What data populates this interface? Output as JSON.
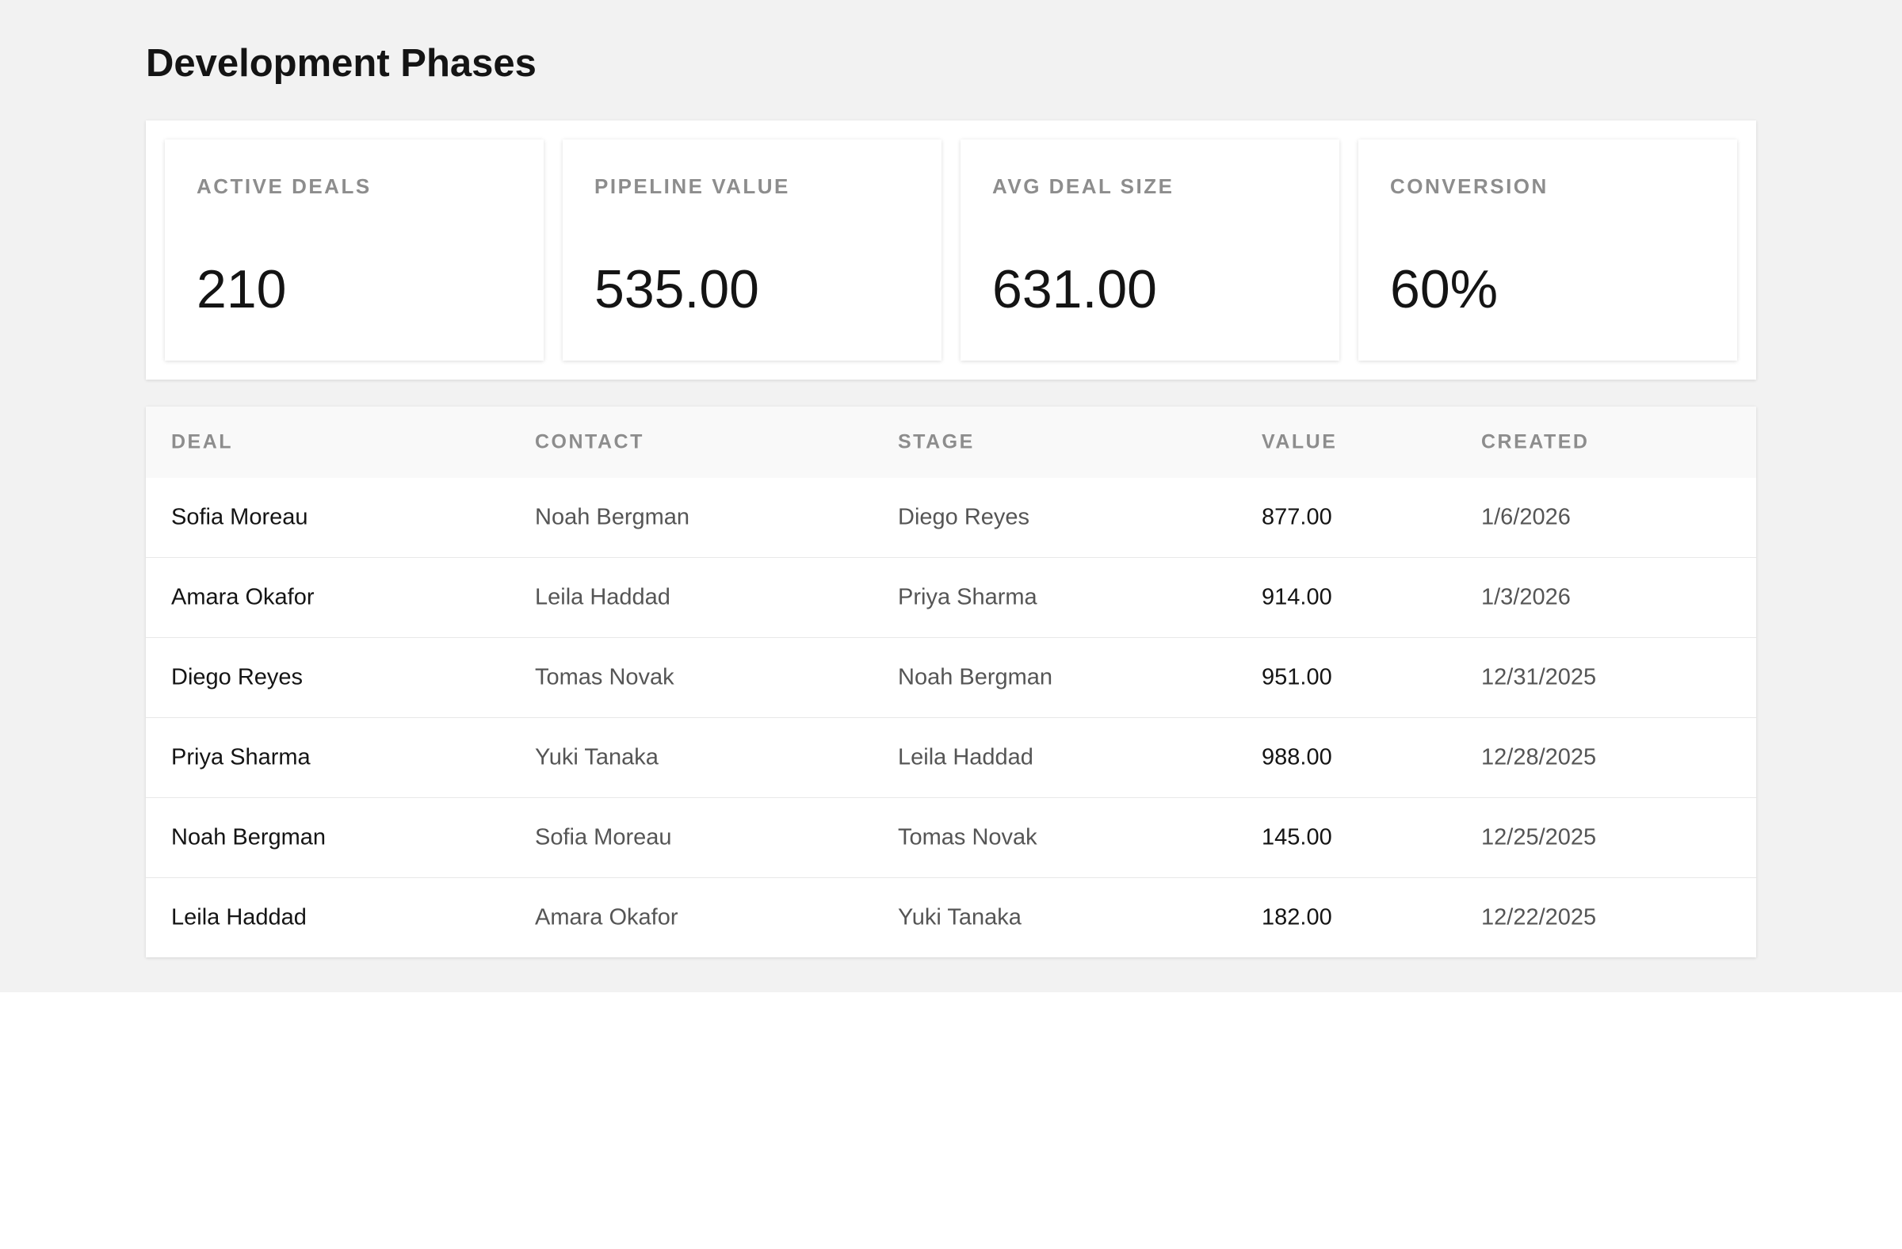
{
  "header": {
    "title": "Development Phases"
  },
  "kpis": [
    {
      "label": "ACTIVE DEALS",
      "value": "210"
    },
    {
      "label": "PIPELINE VALUE",
      "value": "535.00"
    },
    {
      "label": "AVG DEAL SIZE",
      "value": "631.00"
    },
    {
      "label": "CONVERSION",
      "value": "60%"
    }
  ],
  "table": {
    "columns": [
      "DEAL",
      "CONTACT",
      "STAGE",
      "VALUE",
      "CREATED"
    ],
    "rows": [
      [
        "Sofia Moreau",
        "Noah Bergman",
        "Diego Reyes",
        "877.00",
        "1/6/2026"
      ],
      [
        "Amara Okafor",
        "Leila Haddad",
        "Priya Sharma",
        "914.00",
        "1/3/2026"
      ],
      [
        "Diego Reyes",
        "Tomas Novak",
        "Noah Bergman",
        "951.00",
        "12/31/2025"
      ],
      [
        "Priya Sharma",
        "Yuki Tanaka",
        "Leila Haddad",
        "988.00",
        "12/28/2025"
      ],
      [
        "Noah Bergman",
        "Sofia Moreau",
        "Tomas Novak",
        "145.00",
        "12/25/2025"
      ],
      [
        "Leila Haddad",
        "Amara Okafor",
        "Yuki Tanaka",
        "182.00",
        "12/22/2025"
      ]
    ]
  }
}
